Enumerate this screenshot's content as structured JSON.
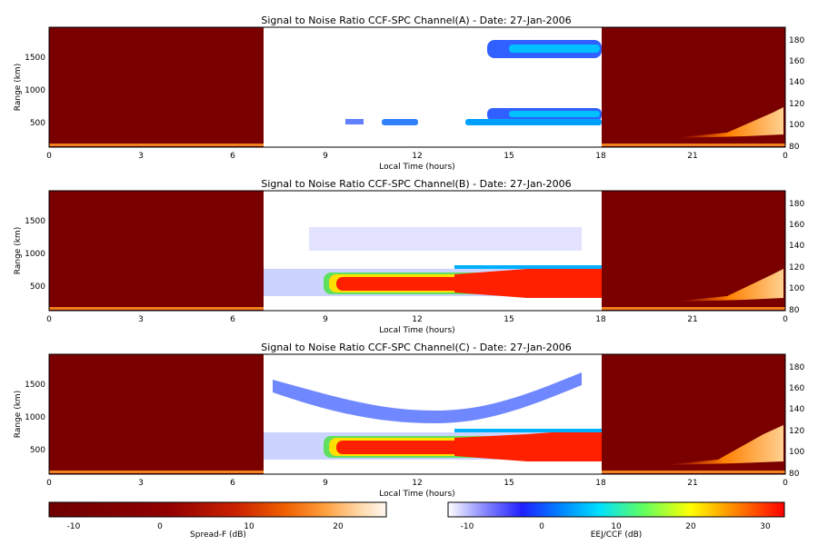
{
  "chart_data": [
    {
      "type": "heatmap",
      "title": "Signal to Noise Ratio CCF-SPC Channel(A) - Date: 27-Jan-2006",
      "xlabel": "Local Time (hours)",
      "ylabel": "Range (km)",
      "xticks": [
        "0",
        "3",
        "6",
        "9",
        "12",
        "15",
        "18",
        "21",
        "0"
      ],
      "yticks_left": [
        500,
        1000,
        1500
      ],
      "yticks_right": [
        80,
        100,
        120,
        140,
        160,
        180
      ],
      "ylim_left": [
        80,
        1950
      ],
      "ylim_right": [
        80,
        192
      ],
      "regions": [
        {
          "name": "Spread-F",
          "x_range": [
            0,
            7
          ],
          "colormap": "Spread-F"
        },
        {
          "name": "EEJ/CCF",
          "x_range": [
            7,
            18
          ],
          "colormap": "EEJ/CCF"
        },
        {
          "name": "Spread-F",
          "x_range": [
            18,
            24
          ],
          "colormap": "Spread-F"
        }
      ],
      "features": [
        {
          "desc": "F-layer echo band",
          "x": [
            14.3,
            18
          ],
          "y_km": [
            1500,
            1700
          ],
          "snr_db": [
            -5,
            8
          ]
        },
        {
          "desc": "valley echo band",
          "x": [
            14.3,
            18
          ],
          "y_km": [
            540,
            700
          ],
          "snr_db": [
            0,
            12
          ]
        },
        {
          "desc": "E-region echo",
          "x": [
            14.2,
            18
          ],
          "y_km": [
            420,
            560
          ],
          "snr_db": [
            -5,
            10
          ]
        },
        {
          "desc": "patchy E-region echoes",
          "x": [
            9.5,
            14
          ],
          "y_km": [
            420,
            520
          ],
          "snr_db": [
            -5,
            5
          ]
        }
      ]
    },
    {
      "type": "heatmap",
      "title": "Signal to Noise Ratio CCF-SPC Channel(B) - Date: 27-Jan-2006",
      "xlabel": "Local Time (hours)",
      "ylabel": "Range (km)",
      "xticks": [
        "0",
        "3",
        "6",
        "9",
        "12",
        "15",
        "18",
        "21",
        "0"
      ],
      "yticks_left": [
        500,
        1000,
        1500
      ],
      "yticks_right": [
        80,
        100,
        120,
        140,
        160,
        180
      ],
      "ylim_left": [
        80,
        1950
      ],
      "ylim_right": [
        80,
        192
      ],
      "features": [
        {
          "desc": "EEJ echo",
          "x": [
            9,
            18
          ],
          "y_km": [
            350,
            700
          ],
          "snr_db": [
            10,
            32
          ]
        },
        {
          "desc": "weak upper echoes",
          "x": [
            9,
            17
          ],
          "y_km": [
            1000,
            1400
          ],
          "snr_db": [
            -12,
            -2
          ]
        }
      ]
    },
    {
      "type": "heatmap",
      "title": "Signal to Noise Ratio CCF-SPC Channel(C) - Date: 27-Jan-2006",
      "xlabel": "Local Time (hours)",
      "ylabel": "Range (km)",
      "xticks": [
        "0",
        "3",
        "6",
        "9",
        "12",
        "15",
        "18",
        "21",
        "0"
      ],
      "yticks_left": [
        500,
        1000,
        1500
      ],
      "yticks_right": [
        80,
        100,
        120,
        140,
        160,
        180
      ],
      "ylim_left": [
        80,
        1950
      ],
      "ylim_right": [
        80,
        192
      ],
      "features": [
        {
          "desc": "EEJ echo",
          "x": [
            9,
            18
          ],
          "y_km": [
            350,
            700
          ],
          "snr_db": [
            10,
            32
          ]
        },
        {
          "desc": "valley/F-region arc",
          "x": [
            8.5,
            17
          ],
          "y_km": [
            1050,
            1700
          ],
          "snr_db": [
            -8,
            2
          ]
        }
      ]
    }
  ],
  "colorbars": [
    {
      "label": "Spread-F (dB)",
      "ticks": [
        "-10",
        "0",
        "10",
        "20"
      ],
      "range": [
        -13,
        25
      ],
      "colors": [
        "#6e0000",
        "#900000",
        "#c82000",
        "#f06000",
        "#ffa040",
        "#ffd8a8",
        "#fff8f0"
      ]
    },
    {
      "label": "EEJ/CCF (dB)",
      "ticks": [
        "-10",
        "0",
        "10",
        "20",
        "30"
      ],
      "range": [
        -14,
        32
      ],
      "colors": [
        "#ffffff",
        "#9090ff",
        "#2020ff",
        "#0080ff",
        "#00e0ff",
        "#60ff60",
        "#ffff00",
        "#ff8000",
        "#ff0000"
      ]
    }
  ]
}
